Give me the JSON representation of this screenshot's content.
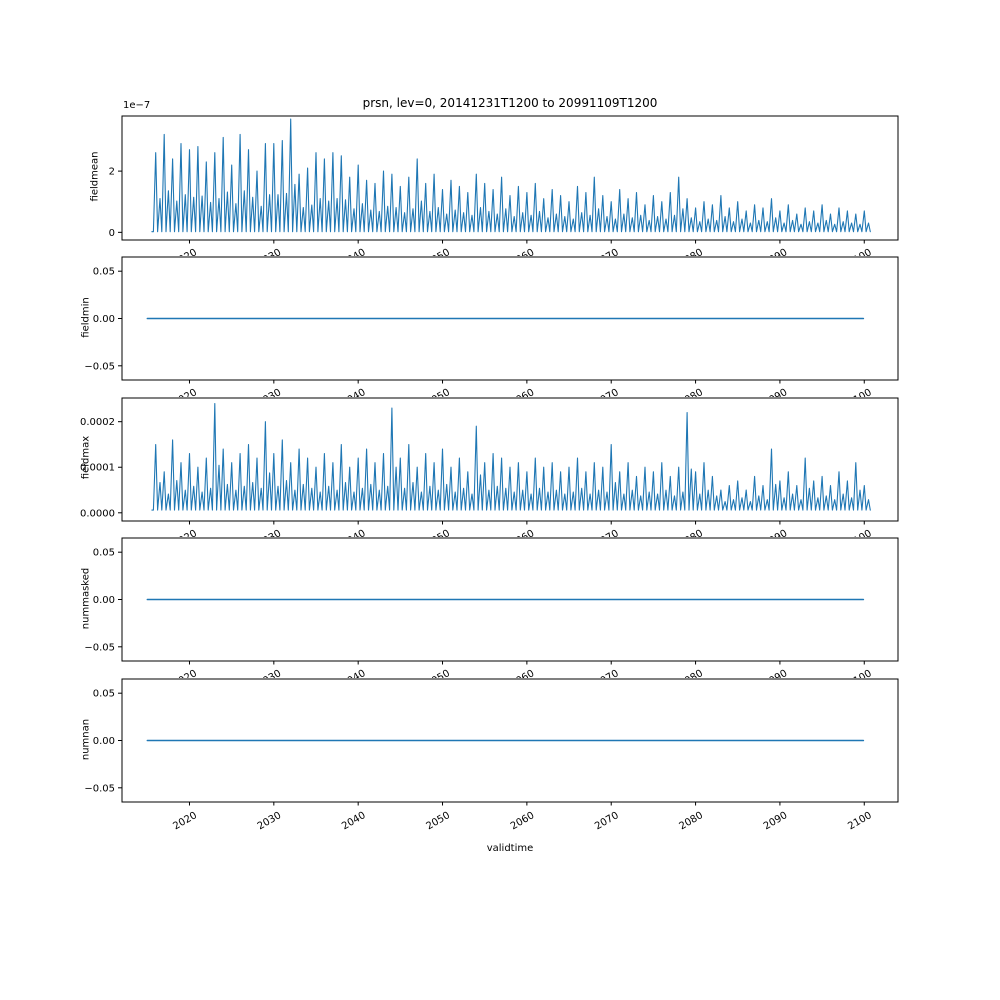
{
  "figure": {
    "title": "prsn, lev=0, 20141231T1200 to 20991109T1200",
    "xlabel": "validtime",
    "line_color": "#1f77b4",
    "background": "#ffffff",
    "xlim": [
      2012,
      2104
    ],
    "x_ticks": [
      2020,
      2030,
      2040,
      2050,
      2060,
      2070,
      2080,
      2090,
      2100
    ],
    "grid": false,
    "legend": "none"
  },
  "chart_data": [
    {
      "type": "line",
      "name": "fieldmean",
      "ylabel": "fieldmean",
      "offset_label": "1e−7",
      "unit_scale": "1e-7",
      "ylim": [
        -0.25,
        3.8
      ],
      "yticks": [
        {
          "label": "2",
          "value": 2
        },
        {
          "label": "0",
          "value": 0
        }
      ],
      "series_kind": "annual_spikes",
      "start_year": 2016,
      "base": 0.02,
      "annual_peaks": [
        2.6,
        3.2,
        2.4,
        2.9,
        2.7,
        2.8,
        2.3,
        2.6,
        3.1,
        2.2,
        3.2,
        2.7,
        2.0,
        2.9,
        2.9,
        3.0,
        3.7,
        1.9,
        2.1,
        2.6,
        2.4,
        2.6,
        2.5,
        1.8,
        2.2,
        1.7,
        1.6,
        2.0,
        1.9,
        1.5,
        1.8,
        2.4,
        1.6,
        1.9,
        1.4,
        1.7,
        1.5,
        1.3,
        1.9,
        1.6,
        1.4,
        1.8,
        1.2,
        1.5,
        1.3,
        1.6,
        1.1,
        1.4,
        1.2,
        1.0,
        1.5,
        1.3,
        1.8,
        1.2,
        1.0,
        1.4,
        1.1,
        1.3,
        0.9,
        1.2,
        1.0,
        1.3,
        1.8,
        1.1,
        0.8,
        1.0,
        0.9,
        1.2,
        0.8,
        1.0,
        0.7,
        0.9,
        0.8,
        1.1,
        0.7,
        0.9,
        0.6,
        0.8,
        0.7,
        0.9,
        0.6,
        0.8,
        0.7,
        0.6,
        0.7
      ]
    },
    {
      "type": "line",
      "name": "fieldmin",
      "ylabel": "fieldmin",
      "ylim": [
        -0.065,
        0.065
      ],
      "yticks": [
        {
          "label": "0.05",
          "value": 0.05
        },
        {
          "label": "0.00",
          "value": 0
        },
        {
          "label": "−0.05",
          "value": -0.05
        }
      ],
      "series_kind": "constant",
      "value": 0,
      "x_start": 2015.0,
      "x_end": 2099.9
    },
    {
      "type": "line",
      "name": "fieldmax",
      "ylabel": "fieldmax",
      "unit_scale": "1e-4",
      "ylim": [
        -0.18,
        2.52
      ],
      "yticks": [
        {
          "label": "0.0002",
          "value": 2
        },
        {
          "label": "0.0001",
          "value": 1
        },
        {
          "label": "0.0000",
          "value": 0
        }
      ],
      "series_kind": "annual_spikes",
      "start_year": 2016,
      "base": 0.06,
      "annual_peaks": [
        1.5,
        0.9,
        1.6,
        1.1,
        1.3,
        1.0,
        1.2,
        2.4,
        1.4,
        1.1,
        1.3,
        1.5,
        1.2,
        2.0,
        1.3,
        1.6,
        1.1,
        1.4,
        1.2,
        1.0,
        1.3,
        1.1,
        1.5,
        1.0,
        1.2,
        1.4,
        1.1,
        1.3,
        2.3,
        1.2,
        1.5,
        1.0,
        1.3,
        1.1,
        1.4,
        1.0,
        1.2,
        0.9,
        1.9,
        1.1,
        1.3,
        1.2,
        1.0,
        1.1,
        0.9,
        1.2,
        1.0,
        1.1,
        0.9,
        1.0,
        1.2,
        0.9,
        1.1,
        1.0,
        1.5,
        0.9,
        1.1,
        0.8,
        1.0,
        0.9,
        1.1,
        0.8,
        1.0,
        2.2,
        0.9,
        1.1,
        0.8,
        0.5,
        0.6,
        0.7,
        0.5,
        0.8,
        0.6,
        1.4,
        0.7,
        0.9,
        0.6,
        1.2,
        0.7,
        0.8,
        0.6,
        0.9,
        0.7,
        1.1,
        0.6
      ]
    },
    {
      "type": "line",
      "name": "nummasked",
      "ylabel": "nummasked",
      "ylim": [
        -0.065,
        0.065
      ],
      "yticks": [
        {
          "label": "0.05",
          "value": 0.05
        },
        {
          "label": "0.00",
          "value": 0
        },
        {
          "label": "−0.05",
          "value": -0.05
        }
      ],
      "series_kind": "constant",
      "value": 0,
      "x_start": 2015.0,
      "x_end": 2099.9
    },
    {
      "type": "line",
      "name": "numnan",
      "ylabel": "numnan",
      "ylim": [
        -0.065,
        0.065
      ],
      "yticks": [
        {
          "label": "0.05",
          "value": 0.05
        },
        {
          "label": "0.00",
          "value": 0
        },
        {
          "label": "−0.05",
          "value": -0.05
        }
      ],
      "series_kind": "constant",
      "value": 0,
      "x_start": 2015.0,
      "x_end": 2099.9
    }
  ]
}
